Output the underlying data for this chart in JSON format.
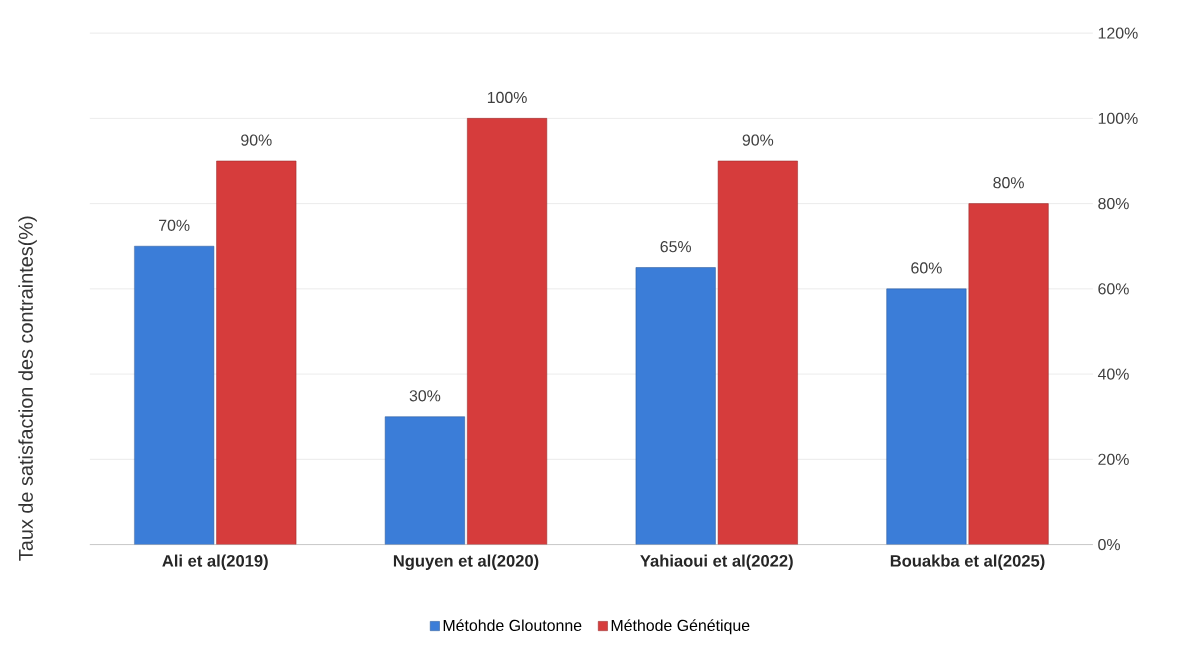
{
  "chart_data": {
    "type": "bar",
    "ylabel": "Taux de satisfaction des contraintes(%)",
    "categories": [
      "Ali et al(2019)",
      "Nguyen et al(2020)",
      "Yahiaoui et al(2022)",
      "Bouakba et al(2025)"
    ],
    "series": [
      {
        "name": "Métohde Gloutonne",
        "color": "#3b7dd8",
        "values": [
          70,
          30,
          65,
          60
        ],
        "value_labels": [
          "70%",
          "30%",
          "65%",
          "60%"
        ]
      },
      {
        "name": "Méthode Génétique",
        "color": "#d63c3c",
        "values": [
          90,
          100,
          90,
          80
        ],
        "value_labels": [
          "90%",
          "100%",
          "90%",
          "80%"
        ]
      }
    ],
    "ylim": [
      0,
      120
    ],
    "yticks": [
      {
        "value": 0,
        "label": "0%"
      },
      {
        "value": 20,
        "label": "20%"
      },
      {
        "value": 40,
        "label": "40%"
      },
      {
        "value": 60,
        "label": "60%"
      },
      {
        "value": 80,
        "label": "80%"
      },
      {
        "value": 100,
        "label": "100%"
      },
      {
        "value": 120,
        "label": "120%"
      }
    ],
    "grid": "y",
    "legend": "bottom"
  }
}
